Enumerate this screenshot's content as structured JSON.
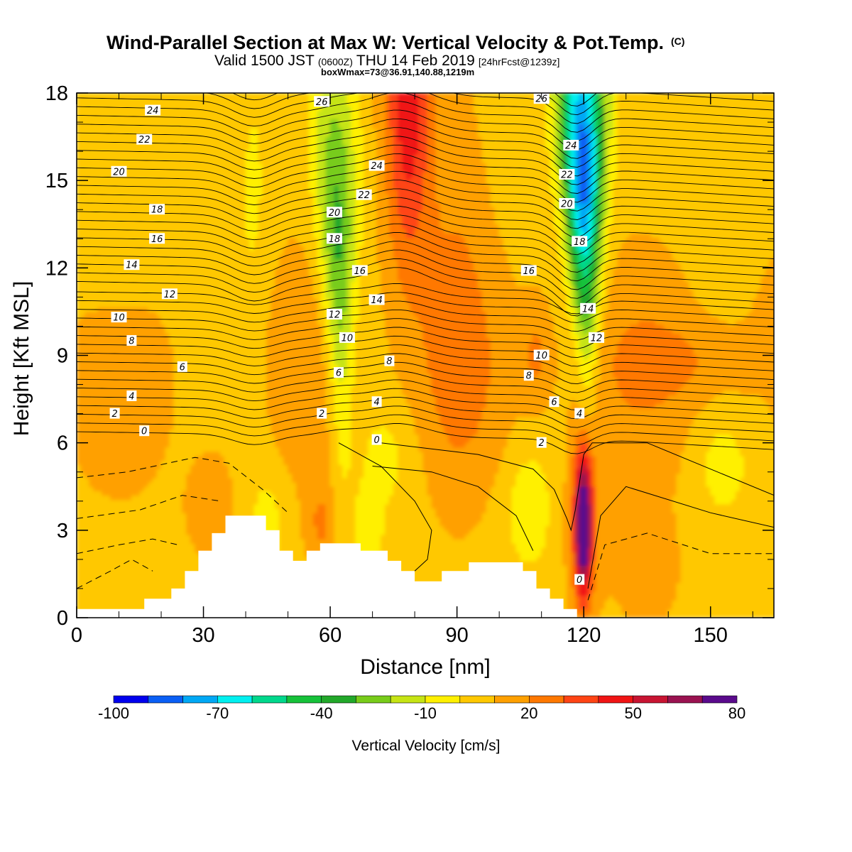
{
  "title": {
    "main": "Wind-Parallel Section at Max W: Vertical Velocity & Pot.Temp.",
    "copyright": "(C)",
    "valid_prefix": "Valid 1500 JST",
    "valid_utc": "(0600Z)",
    "valid_date": "THU 14 Feb 2019",
    "forecast": "[24hrFcst@1239z]",
    "boxinfo": "boxWmax=73@36.91,140.88,1219m"
  },
  "chart_data": {
    "type": "heatmap",
    "xlabel": "Distance [nm]",
    "ylabel": "Height [Kft MSL]",
    "xlim": [
      0,
      165
    ],
    "ylim": [
      0,
      18
    ],
    "xticks": [
      "0",
      "30",
      "60",
      "90",
      "120",
      "150"
    ],
    "xtick_values": [
      0,
      30,
      60,
      90,
      120,
      150
    ],
    "yticks": [
      "0",
      "3",
      "6",
      "9",
      "12",
      "15",
      "18"
    ],
    "ytick_values": [
      0,
      3,
      6,
      9,
      12,
      15,
      18
    ],
    "colorbar": {
      "title": "Vertical Velocity [cm/s]",
      "labels": [
        "-100",
        "-70",
        "-40",
        "-10",
        "20",
        "50",
        "80"
      ],
      "label_values": [
        -100,
        -70,
        -40,
        -10,
        20,
        50,
        80
      ],
      "bounds": [
        -100,
        -90,
        -80,
        -70,
        -60,
        -50,
        -40,
        -30,
        -20,
        -10,
        0,
        10,
        20,
        30,
        40,
        50,
        60,
        70,
        80
      ],
      "colors": [
        "#0000ee",
        "#0a5ff5",
        "#00a8f5",
        "#00f0f0",
        "#00d88c",
        "#16c23a",
        "#22a82a",
        "#78cc1a",
        "#c6e414",
        "#fff000",
        "#ffc800",
        "#ffa000",
        "#ff7800",
        "#ff4414",
        "#f01414",
        "#c81432",
        "#9a1250",
        "#5a0a8c"
      ]
    },
    "features": [
      {
        "name": "downdraft",
        "x": 62,
        "z_range": [
          5.5,
          18
        ],
        "w_cm_s": -35
      },
      {
        "name": "updraft",
        "x": 78,
        "z_range": [
          11,
          18
        ],
        "w_cm_s": 45
      },
      {
        "name": "downdraft",
        "x": 120.5,
        "z_range": [
          8.5,
          18
        ],
        "w_cm_s": -85
      },
      {
        "name": "updraft",
        "x": 120,
        "z_range": [
          0.8,
          6
        ],
        "w_cm_s": 73
      }
    ],
    "terrain": {
      "x": [
        0,
        16,
        16,
        22.4,
        22.4,
        25.6,
        25.6,
        28.8,
        28.8,
        32,
        32,
        35.2,
        35.2,
        44.8,
        44.8,
        48,
        48,
        51.2,
        51.2,
        54.4,
        54.4,
        57.6,
        57.6,
        67.2,
        67.2,
        73.6,
        73.6,
        76.8,
        76.8,
        80,
        80,
        86.4,
        86.4,
        92.8,
        92.8,
        105.6,
        105.6,
        108.8,
        108.8,
        112,
        112,
        115.2,
        115.2,
        118.4,
        118.4,
        165
      ],
      "z_kft": [
        0.3,
        0.3,
        0.65,
        0.65,
        1.0,
        1.0,
        1.6,
        1.6,
        2.3,
        2.3,
        2.9,
        2.9,
        3.5,
        3.5,
        3.0,
        3.0,
        2.3,
        2.3,
        1.95,
        1.95,
        2.3,
        2.3,
        2.55,
        2.55,
        2.3,
        2.3,
        1.95,
        1.95,
        1.6,
        1.6,
        1.25,
        1.25,
        1.6,
        1.6,
        1.9,
        1.9,
        1.6,
        1.6,
        1.0,
        1.0,
        0.65,
        0.65,
        0.3,
        0.3,
        0,
        0
      ]
    },
    "theta_contour_labels": [
      {
        "text": "24",
        "x": 18,
        "z": 17.4
      },
      {
        "text": "22",
        "x": 16,
        "z": 16.4
      },
      {
        "text": "20",
        "x": 10,
        "z": 15.3
      },
      {
        "text": "18",
        "x": 19,
        "z": 14.0
      },
      {
        "text": "16",
        "x": 19,
        "z": 13.0
      },
      {
        "text": "14",
        "x": 13,
        "z": 12.1
      },
      {
        "text": "12",
        "x": 22,
        "z": 11.1
      },
      {
        "text": "10",
        "x": 10,
        "z": 10.3
      },
      {
        "text": "8",
        "x": 13,
        "z": 9.5
      },
      {
        "text": "6",
        "x": 25,
        "z": 8.6
      },
      {
        "text": "4",
        "x": 13,
        "z": 7.6
      },
      {
        "text": "2",
        "x": 9,
        "z": 7.0
      },
      {
        "text": "0",
        "x": 16,
        "z": 6.4
      },
      {
        "text": "26",
        "x": 58,
        "z": 17.7
      },
      {
        "text": "24",
        "x": 71,
        "z": 15.5
      },
      {
        "text": "22",
        "x": 68,
        "z": 14.5
      },
      {
        "text": "20",
        "x": 61,
        "z": 13.9
      },
      {
        "text": "18",
        "x": 61,
        "z": 13.0
      },
      {
        "text": "16",
        "x": 67,
        "z": 11.9
      },
      {
        "text": "14",
        "x": 71,
        "z": 10.9
      },
      {
        "text": "12",
        "x": 61,
        "z": 10.4
      },
      {
        "text": "10",
        "x": 64,
        "z": 9.6
      },
      {
        "text": "8",
        "x": 74,
        "z": 8.8
      },
      {
        "text": "6",
        "x": 62,
        "z": 8.4
      },
      {
        "text": "4",
        "x": 71,
        "z": 7.4
      },
      {
        "text": "2",
        "x": 58,
        "z": 7.0
      },
      {
        "text": "0",
        "x": 71,
        "z": 6.1
      },
      {
        "text": "26",
        "x": 110,
        "z": 17.8
      },
      {
        "text": "24",
        "x": 117,
        "z": 16.2
      },
      {
        "text": "22",
        "x": 116,
        "z": 15.2
      },
      {
        "text": "20",
        "x": 116,
        "z": 14.2
      },
      {
        "text": "18",
        "x": 119,
        "z": 12.9
      },
      {
        "text": "16",
        "x": 107,
        "z": 11.9
      },
      {
        "text": "14",
        "x": 121,
        "z": 10.6
      },
      {
        "text": "12",
        "x": 123,
        "z": 9.6
      },
      {
        "text": "10",
        "x": 110,
        "z": 9.0
      },
      {
        "text": "8",
        "x": 107,
        "z": 8.3
      },
      {
        "text": "6",
        "x": 113,
        "z": 7.4
      },
      {
        "text": "4",
        "x": 119,
        "z": 7.0
      },
      {
        "text": "2",
        "x": 110,
        "z": 6.0
      },
      {
        "text": "0",
        "x": 119,
        "z": 1.3
      }
    ]
  }
}
